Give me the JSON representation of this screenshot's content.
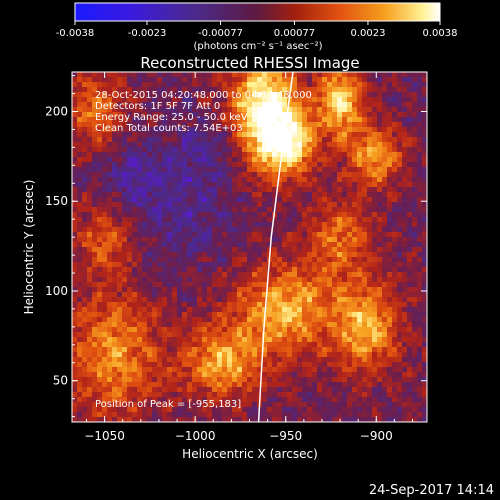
{
  "colorbar": {
    "ticks": [
      "-0.0038",
      "-0.0023",
      "-0.00077",
      "0.00077",
      "0.0023",
      "0.0038"
    ],
    "tick_values": [
      -0.0038,
      -0.0023,
      -0.00077,
      0.00077,
      0.0023,
      0.0038
    ],
    "unit_label": "(photons cm⁻² s⁻¹ asec⁻²)"
  },
  "footer": {
    "timestamp": "24-Sep-2017 14:14"
  },
  "colors": {
    "background": "#000000",
    "limb_curve": "#ffffff",
    "colormap": [
      "#1a1aff",
      "#5a1ad0",
      "#4b2a8a",
      "#6a1e4f",
      "#b0231a",
      "#e05010",
      "#f7a020",
      "#fff090",
      "#ffffff"
    ]
  },
  "chart_data": {
    "type": "heatmap",
    "title": "Reconstructed RHESSI Image",
    "xlabel": "Heliocentric X (arcsec)",
    "ylabel": "Heliocentric Y (arcsec)",
    "xlim": [
      -1068,
      -872
    ],
    "ylim": [
      27,
      222
    ],
    "x_ticks": [
      -1050,
      -1000,
      -950,
      -900
    ],
    "x_tick_labels": [
      "−1050",
      "−1000",
      "−950",
      "−900"
    ],
    "y_ticks": [
      50,
      100,
      150,
      200
    ],
    "y_tick_labels": [
      "50",
      "100",
      "150",
      "200"
    ],
    "value_range": [
      -0.0038,
      0.0038
    ],
    "annotations": [
      "28-Oct-2015 04:20:48.000 to 04:34:48.000",
      "Detectors: 1F 5F 7F  Att 0",
      "Energy Range: 25.0 - 50.0 keV",
      "Clean     Total counts: 7.54E+03"
    ],
    "peak_label": "Position of Peak = [-955,183]",
    "peak": {
      "x": -955,
      "y": 183
    },
    "limb_curve_points": [
      [
        -965,
        27
      ],
      [
        -962,
        80
      ],
      [
        -958,
        130
      ],
      [
        -953,
        170
      ],
      [
        -946,
        222
      ]
    ],
    "hot_spots": [
      {
        "x": -962,
        "y": 200,
        "sx": 13,
        "sy": 22,
        "amp": 1.0
      },
      {
        "x": -948,
        "y": 182,
        "sx": 10,
        "sy": 12,
        "amp": 0.7
      },
      {
        "x": -920,
        "y": 205,
        "sx": 9,
        "sy": 15,
        "amp": 0.75
      },
      {
        "x": -900,
        "y": 175,
        "sx": 10,
        "sy": 12,
        "amp": 0.6
      },
      {
        "x": -950,
        "y": 90,
        "sx": 20,
        "sy": 18,
        "amp": 0.65
      },
      {
        "x": -985,
        "y": 60,
        "sx": 16,
        "sy": 14,
        "amp": 0.6
      },
      {
        "x": -1045,
        "y": 65,
        "sx": 18,
        "sy": 25,
        "amp": 0.55
      },
      {
        "x": -1055,
        "y": 200,
        "sx": 12,
        "sy": 15,
        "amp": 0.45
      },
      {
        "x": -1050,
        "y": 130,
        "sx": 12,
        "sy": 14,
        "amp": 0.4
      },
      {
        "x": -905,
        "y": 80,
        "sx": 13,
        "sy": 18,
        "amp": 0.6
      },
      {
        "x": -920,
        "y": 130,
        "sx": 12,
        "sy": 15,
        "amp": 0.45
      }
    ],
    "cold_spots": [
      {
        "x": -1010,
        "y": 150,
        "sx": 22,
        "sy": 25,
        "amp": 0.55
      },
      {
        "x": -1040,
        "y": 165,
        "sx": 12,
        "sy": 12,
        "amp": 0.4
      },
      {
        "x": -985,
        "y": 180,
        "sx": 14,
        "sy": 12,
        "amp": 0.35
      }
    ]
  }
}
